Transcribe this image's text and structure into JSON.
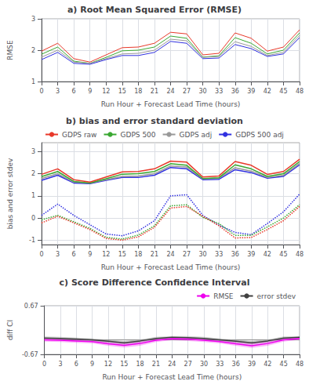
{
  "chart_data": [
    {
      "type": "line",
      "title": "a) Root Mean Squared Error (RMSE)",
      "xlabel": "Run Hour + Forecast Lead Time (hours)",
      "ylabel": "RMSE",
      "x": [
        0,
        3,
        6,
        9,
        12,
        15,
        18,
        21,
        24,
        27,
        30,
        33,
        36,
        39,
        42,
        45,
        48
      ],
      "xlim": [
        0,
        48
      ],
      "xticks": [
        0,
        3,
        6,
        9,
        12,
        15,
        18,
        21,
        24,
        27,
        30,
        33,
        36,
        39,
        42,
        45,
        48
      ],
      "ylim": [
        1.0,
        3.0
      ],
      "yticks": [
        1,
        2,
        3
      ],
      "grid": true,
      "series": [
        {
          "color": "#e8392a",
          "values": [
            1.97,
            2.22,
            1.73,
            1.62,
            1.85,
            2.08,
            2.1,
            2.22,
            2.57,
            2.52,
            1.85,
            1.9,
            2.55,
            2.38,
            1.97,
            2.1,
            2.65
          ]
        },
        {
          "color": "#3aa832",
          "values": [
            1.87,
            2.1,
            1.65,
            1.58,
            1.77,
            1.98,
            2.0,
            2.1,
            2.45,
            2.38,
            1.78,
            1.82,
            2.4,
            2.22,
            1.88,
            2.0,
            2.55
          ]
        },
        {
          "color": "#999999",
          "values": [
            1.78,
            2.0,
            1.62,
            1.58,
            1.73,
            1.88,
            1.9,
            2.0,
            2.35,
            2.3,
            1.77,
            1.8,
            2.27,
            2.12,
            1.83,
            1.93,
            2.47
          ]
        },
        {
          "color": "#3030e0",
          "values": [
            1.7,
            1.93,
            1.58,
            1.55,
            1.7,
            1.83,
            1.83,
            1.93,
            2.28,
            2.22,
            1.73,
            1.75,
            2.18,
            2.05,
            1.8,
            1.88,
            2.4
          ]
        }
      ]
    },
    {
      "type": "line",
      "title": "b) bias and error standard deviation",
      "xlabel": "Run Hour + Forecast Lead Time (hours)",
      "ylabel": "bias and error stdev",
      "x": [
        0,
        3,
        6,
        9,
        12,
        15,
        18,
        21,
        24,
        27,
        30,
        33,
        36,
        39,
        42,
        45,
        48
      ],
      "xlim": [
        0,
        48
      ],
      "xticks": [
        0,
        3,
        6,
        9,
        12,
        15,
        18,
        21,
        24,
        27,
        30,
        33,
        36,
        39,
        42,
        45,
        48
      ],
      "ylim": [
        -1.2,
        3.4
      ],
      "yticks": [
        -1,
        0,
        1,
        2,
        3
      ],
      "grid": true,
      "legend": "upper left",
      "series": [
        {
          "name": "GDPS raw",
          "color": "#e8392a",
          "line_style": "solid",
          "values": [
            1.97,
            2.22,
            1.73,
            1.62,
            1.85,
            2.08,
            2.1,
            2.22,
            2.57,
            2.52,
            1.85,
            1.9,
            2.55,
            2.38,
            1.97,
            2.1,
            2.65
          ]
        },
        {
          "name": "GDPS 500",
          "color": "#3aa832",
          "line_style": "solid",
          "values": [
            1.87,
            2.1,
            1.65,
            1.58,
            1.77,
            1.98,
            2.0,
            2.1,
            2.45,
            2.38,
            1.78,
            1.82,
            2.4,
            2.22,
            1.88,
            2.0,
            2.55
          ]
        },
        {
          "name": "GDPS adj",
          "color": "#999999",
          "line_style": "solid",
          "values": [
            1.78,
            2.0,
            1.62,
            1.58,
            1.73,
            1.88,
            1.9,
            2.0,
            2.35,
            2.3,
            1.77,
            1.8,
            2.27,
            2.12,
            1.83,
            1.93,
            2.47
          ]
        },
        {
          "name": "GDPS 500 adj",
          "color": "#3030e0",
          "line_style": "solid",
          "values": [
            1.7,
            1.93,
            1.58,
            1.55,
            1.7,
            1.83,
            1.83,
            1.93,
            2.28,
            2.22,
            1.73,
            1.75,
            2.18,
            2.05,
            1.8,
            1.88,
            2.4
          ]
        },
        {
          "name": "GDPS raw",
          "color": "#e8392a",
          "line_style": "dotted",
          "values": [
            -0.22,
            0.08,
            -0.22,
            -0.52,
            -0.92,
            -1.0,
            -0.85,
            -0.42,
            0.45,
            0.52,
            0.08,
            -0.35,
            -0.9,
            -0.88,
            -0.52,
            -0.12,
            0.52
          ]
        },
        {
          "name": "GDPS 500",
          "color": "#3aa832",
          "line_style": "dotted",
          "values": [
            -0.08,
            0.12,
            -0.17,
            -0.47,
            -0.87,
            -0.95,
            -0.77,
            -0.35,
            0.55,
            0.6,
            0.03,
            -0.25,
            -0.78,
            -0.78,
            -0.4,
            0.0,
            0.6
          ]
        },
        {
          "name": "GDPS 500 adj",
          "color": "#3030e0",
          "line_style": "dotted",
          "values": [
            0.12,
            0.63,
            0.12,
            -0.3,
            -0.72,
            -0.8,
            -0.58,
            -0.12,
            1.0,
            1.05,
            0.12,
            -0.32,
            -0.65,
            -0.75,
            -0.25,
            0.28,
            1.08
          ]
        }
      ]
    },
    {
      "type": "line",
      "title": "c) Score Difference Confidence Interval",
      "xlabel": "Run Hour + Forecast Lead Time (hours)",
      "ylabel": "diff CI",
      "x": [
        0,
        3,
        6,
        9,
        12,
        15,
        18,
        21,
        24,
        27,
        30,
        33,
        36,
        39,
        42,
        45,
        48
      ],
      "xlim": [
        0,
        48
      ],
      "xticks": [
        0,
        3,
        6,
        9,
        12,
        15,
        18,
        21,
        24,
        27,
        30,
        33,
        36,
        39,
        42,
        45,
        48
      ],
      "ylim": [
        -0.67,
        0.67
      ],
      "yticks": [
        -0.67,
        0.67
      ],
      "grid": true,
      "legend": "upper right",
      "series": [
        {
          "name": "RMSE",
          "color": "#ee00ee",
          "values": [
            -0.27,
            -0.28,
            -0.3,
            -0.32,
            -0.38,
            -0.42,
            -0.37,
            -0.28,
            -0.24,
            -0.25,
            -0.28,
            -0.32,
            -0.38,
            -0.43,
            -0.37,
            -0.27,
            -0.23
          ],
          "lower": [
            -0.32,
            -0.33,
            -0.35,
            -0.37,
            -0.43,
            -0.48,
            -0.43,
            -0.33,
            -0.28,
            -0.3,
            -0.33,
            -0.37,
            -0.43,
            -0.49,
            -0.43,
            -0.32,
            -0.27
          ],
          "upper": [
            -0.22,
            -0.23,
            -0.25,
            -0.27,
            -0.33,
            -0.36,
            -0.31,
            -0.23,
            -0.2,
            -0.2,
            -0.23,
            -0.27,
            -0.33,
            -0.37,
            -0.31,
            -0.22,
            -0.19
          ]
        },
        {
          "name": "error stdev",
          "color": "#404040",
          "values": [
            -0.22,
            -0.23,
            -0.25,
            -0.27,
            -0.31,
            -0.35,
            -0.3,
            -0.23,
            -0.2,
            -0.21,
            -0.23,
            -0.27,
            -0.31,
            -0.35,
            -0.3,
            -0.22,
            -0.2
          ],
          "lower": [
            -0.26,
            -0.27,
            -0.29,
            -0.31,
            -0.35,
            -0.4,
            -0.34,
            -0.27,
            -0.23,
            -0.25,
            -0.27,
            -0.31,
            -0.35,
            -0.4,
            -0.34,
            -0.26,
            -0.23
          ],
          "upper": [
            -0.18,
            -0.19,
            -0.21,
            -0.23,
            -0.27,
            -0.3,
            -0.26,
            -0.19,
            -0.17,
            -0.17,
            -0.19,
            -0.23,
            -0.27,
            -0.3,
            -0.26,
            -0.18,
            -0.17
          ]
        },
        {
          "color": "#888888",
          "values": [
            -0.27,
            -0.27,
            -0.27,
            -0.27,
            -0.27,
            -0.27,
            -0.27,
            -0.27,
            -0.27,
            -0.27,
            -0.27,
            -0.27,
            -0.27,
            -0.27,
            -0.27,
            -0.27,
            -0.27
          ]
        }
      ]
    }
  ]
}
